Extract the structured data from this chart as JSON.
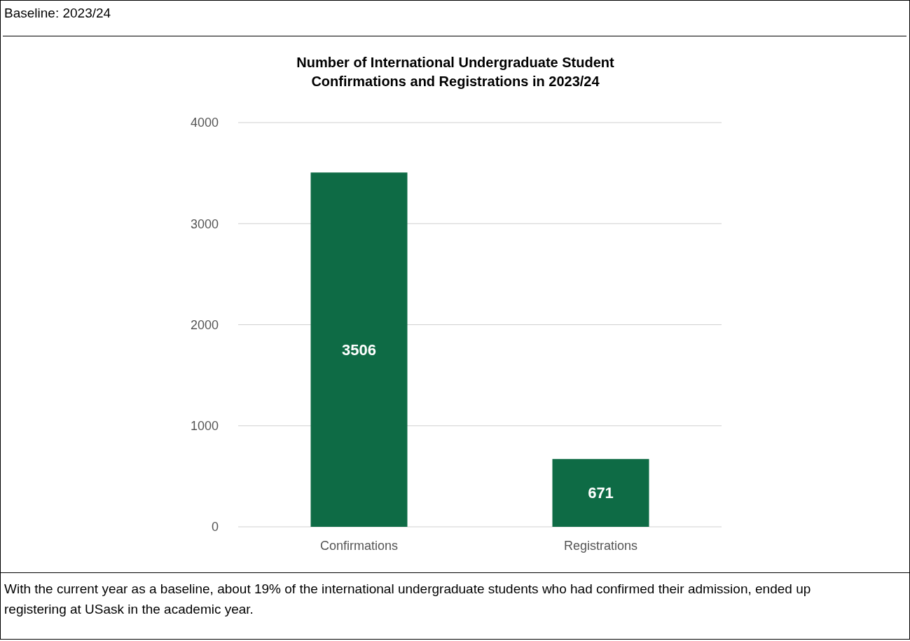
{
  "chart_data": {
    "type": "bar",
    "title": "Number of International Undergraduate Student\nConfirmations and Registrations in 2023/24",
    "categories": [
      "Confirmations",
      "Registrations"
    ],
    "values": [
      3506,
      671
    ],
    "color": "#0e6b45",
    "ylim": [
      0,
      4000
    ],
    "yticks": [
      0,
      1000,
      2000,
      3000,
      4000
    ],
    "grid": "y",
    "data_labels": true,
    "annotations": [
      "Baseline: 2023/24",
      "With the current year as a baseline, about 19% of the international undergraduate students who had confirmed their admission, ended up registering at USask in the academic year."
    ]
  }
}
